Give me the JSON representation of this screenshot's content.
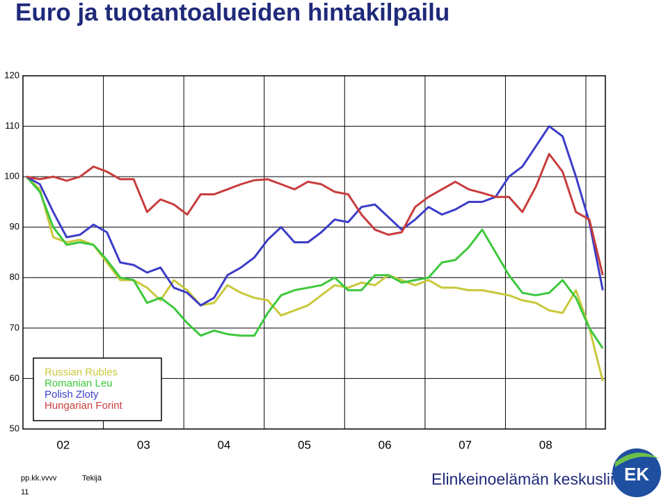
{
  "chart_data": {
    "type": "line",
    "title": "Euro ja tuotantoalueiden hintakilpailu",
    "x_labels": [
      "02",
      "03",
      "04",
      "05",
      "06",
      "07",
      "08"
    ],
    "ylim": [
      50,
      120
    ],
    "yticks": [
      50,
      60,
      70,
      80,
      90,
      100,
      110,
      120
    ],
    "grid": true,
    "legend": "lower left",
    "series": [
      {
        "name": "Russian Rubles",
        "color": "#c8c83c",
        "values": [
          100,
          97.5,
          88,
          87,
          87.5,
          86.5,
          83,
          79.5,
          79.5,
          78,
          75.5,
          79.5,
          77.5,
          74.5,
          75,
          78.5,
          77,
          76,
          75.5,
          72.5,
          73.5,
          74.5,
          76.5,
          78.5,
          78,
          79,
          78.5,
          80.5,
          79.5,
          78.5,
          79.5,
          78,
          78,
          77.5,
          77.5,
          77,
          76.5,
          75.5,
          75,
          73.5,
          73,
          77.5,
          70,
          59.5
        ]
      },
      {
        "name": "Romanian Leu",
        "color": "#3cc83c",
        "values": [
          100,
          97,
          90,
          86.5,
          87,
          86.5,
          83.5,
          80,
          79.5,
          75,
          76,
          74,
          71,
          68.5,
          69.5,
          68.8,
          68.5,
          68.5,
          73,
          76.5,
          77.5,
          78,
          78.5,
          80,
          77.5,
          77.5,
          80.5,
          80.5,
          79,
          79.5,
          80,
          83,
          83.5,
          86,
          89.5,
          85,
          80.5,
          77,
          76.5,
          77,
          79.5,
          76,
          70,
          66
        ]
      },
      {
        "name": "Polish Zloty",
        "color": "#3c3cc8",
        "values": [
          100,
          98.5,
          93,
          88,
          88.5,
          90.5,
          89,
          83,
          82.5,
          81,
          82,
          78,
          77,
          74.5,
          76,
          80.5,
          82,
          84,
          87.5,
          90,
          87,
          87,
          89,
          91.5,
          91,
          94,
          94.5,
          92,
          89.5,
          91.5,
          94,
          92.5,
          93.5,
          95,
          95,
          96,
          100,
          102,
          106,
          110,
          108,
          100,
          91,
          77.5
        ]
      },
      {
        "name": "Hungarian Forint",
        "color": "#c83c3c",
        "values": [
          100,
          99.5,
          100,
          99.2,
          100,
          102,
          101,
          99.5,
          99.5,
          93,
          95.5,
          94.5,
          92.5,
          96.5,
          96.5,
          97.5,
          98.5,
          99.3,
          99.5,
          98.5,
          97.5,
          99,
          98.5,
          97,
          96.5,
          92.5,
          89.5,
          88.5,
          89,
          94,
          96,
          97.5,
          99,
          97.5,
          96.8,
          96,
          96,
          93,
          98,
          104.5,
          101,
          93,
          91.5,
          80.5
        ]
      }
    ]
  },
  "footer": {
    "date": "pp.kk.vvvv",
    "author": "Tekijä",
    "page": "11",
    "org": "Elinkeinoelämän keskusliitto",
    "logo": "EK"
  }
}
